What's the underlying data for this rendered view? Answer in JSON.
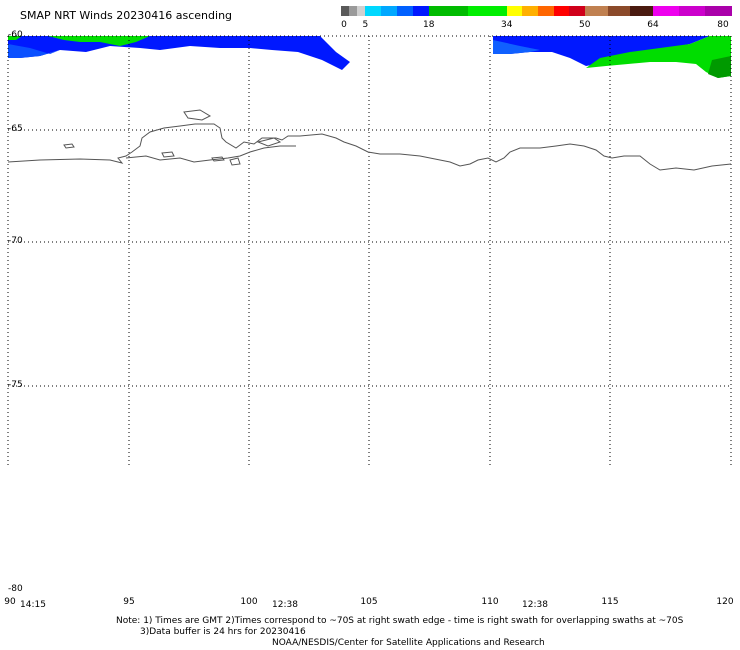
{
  "title": "SMAP NRT Winds 20230416 ascending",
  "colorbar": {
    "labels": [
      "0",
      "5",
      "18",
      "34",
      "50",
      "64",
      "80"
    ],
    "segments": [
      {
        "from": 0,
        "to": 5,
        "colors": [
          "#5a5a5a",
          "#9a9a9a",
          "#d0d0d0"
        ]
      },
      {
        "from": 5,
        "to": 18,
        "colors": [
          "#00d8ff",
          "#00a8ff",
          "#0060ff",
          "#0018ff"
        ]
      },
      {
        "from": 18,
        "to": 34,
        "colors": [
          "#00bb00",
          "#00ee00"
        ]
      },
      {
        "from": 34,
        "to": 50,
        "colors": [
          "#ffff00",
          "#ffb000",
          "#ff6600",
          "#ff0000",
          "#d0001a"
        ]
      },
      {
        "from": 50,
        "to": 64,
        "colors": [
          "#c08050",
          "#8b4a2a",
          "#4a1a10"
        ]
      },
      {
        "from": 64,
        "to": 80,
        "colors": [
          "#ee00ee",
          "#cc00cc",
          "#aa00aa"
        ]
      }
    ]
  },
  "axes": {
    "lon_ticks": [
      "90",
      "95",
      "100",
      "105",
      "110",
      "115",
      "120"
    ],
    "lat_ticks": [
      "-60",
      "-65",
      "-70",
      "-75",
      "-80"
    ],
    "lon_range": [
      90,
      120
    ],
    "lat_range": [
      -60,
      -80
    ]
  },
  "swath_times": [
    "14:15",
    "12:38",
    "12:38"
  ],
  "notes": {
    "line1": "Note: 1) Times are GMT 2)Times correspond to ~70S at right swath edge - time is right swath for overlapping swaths at ~70S",
    "line2": "3)Data buffer is 24 hrs for 20230416",
    "credit": "NOAA/NESDIS/Center for Satellite Applications and Research"
  },
  "colors": {
    "coastline": "#555555",
    "graticule": "#000000",
    "wind_blue": "#0018ff",
    "wind_green": "#00dd00"
  }
}
